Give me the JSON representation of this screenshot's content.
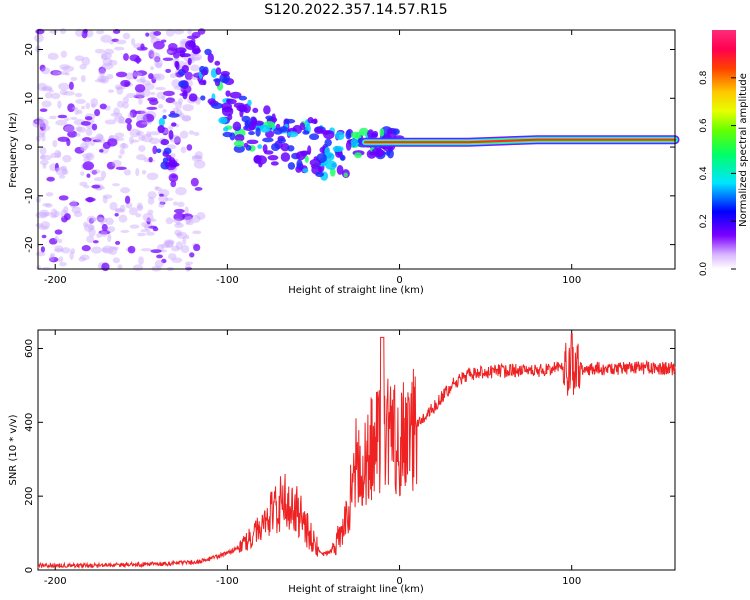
{
  "title": "S120.2022.357.14.57.R15",
  "chart_data": [
    {
      "type": "heatmap",
      "xlabel": "Height of straight line (km)",
      "ylabel": "Frequency (Hz)",
      "xlim": [
        -210,
        160
      ],
      "ylim": [
        -25,
        24
      ],
      "xticks": [
        -200,
        -100,
        0,
        100
      ],
      "yticks": [
        20,
        10,
        0,
        -10,
        -20
      ],
      "colorbar": {
        "label": "Normalized spectral amplitude",
        "ticks": [
          0.0,
          0.2,
          0.4,
          0.6,
          0.8
        ],
        "range": [
          0,
          1
        ]
      },
      "ridge": [
        {
          "x": -130,
          "y": 16
        },
        {
          "x": -115,
          "y": 15
        },
        {
          "x": -105,
          "y": 12
        },
        {
          "x": -95,
          "y": 5
        },
        {
          "x": -80,
          "y": 2
        },
        {
          "x": -65,
          "y": 1
        },
        {
          "x": -50,
          "y": 0
        },
        {
          "x": -35,
          "y": 0
        },
        {
          "x": -20,
          "y": 1
        },
        {
          "x": 0,
          "y": 1
        },
        {
          "x": 40,
          "y": 1
        },
        {
          "x": 80,
          "y": 1.5
        },
        {
          "x": 120,
          "y": 1.5
        },
        {
          "x": 160,
          "y": 1.5
        }
      ]
    },
    {
      "type": "line",
      "xlabel": "Height of straight line (km)",
      "ylabel": "SNR (10 * v/v)",
      "xlim": [
        -210,
        160
      ],
      "ylim": [
        0,
        650
      ],
      "xticks": [
        -200,
        -100,
        0,
        100
      ],
      "yticks": [
        0,
        200,
        400,
        600
      ],
      "series": [
        {
          "color": "#ee2222",
          "x": [
            -210,
            -180,
            -150,
            -120,
            -110,
            -100,
            -90,
            -80,
            -70,
            -65,
            -60,
            -55,
            -50,
            -45,
            -40,
            -35,
            -30,
            -25,
            -20,
            -15,
            -10,
            -5,
            0,
            10,
            20,
            30,
            40,
            60,
            80,
            95,
            100,
            105,
            120,
            140,
            160
          ],
          "y": [
            12,
            12,
            15,
            20,
            30,
            45,
            70,
            120,
            170,
            200,
            165,
            120,
            80,
            40,
            50,
            90,
            160,
            300,
            300,
            350,
            330,
            380,
            340,
            390,
            440,
            500,
            530,
            540,
            540,
            550,
            540,
            545,
            545,
            548,
            545
          ]
        }
      ]
    }
  ]
}
